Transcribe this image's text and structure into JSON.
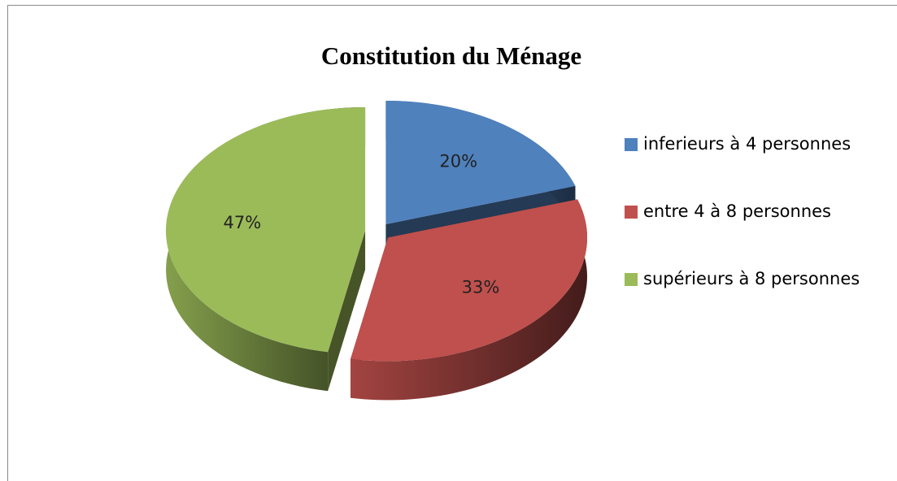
{
  "chart_data": {
    "type": "pie",
    "title": "Constitution du Ménage",
    "categories": [
      "inferieurs à 4 personnes",
      "entre 4 à 8 personnes",
      "supérieurs à 8 personnes"
    ],
    "values": [
      20,
      33,
      47
    ],
    "value_labels": [
      "20%",
      "33%",
      "47%"
    ],
    "colors": [
      "#4f81bd",
      "#c0504d",
      "#9bbb59"
    ],
    "legend": "right"
  }
}
